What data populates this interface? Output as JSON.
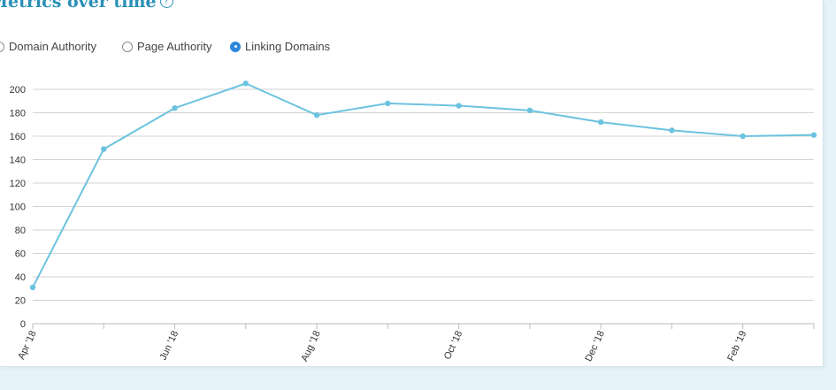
{
  "header": {
    "title": "Metrics over time",
    "help_icon": "question-circle-icon"
  },
  "metric_options": [
    {
      "label": "Domain Authority",
      "selected": false
    },
    {
      "label": "Page Authority",
      "selected": false
    },
    {
      "label": "Linking Domains",
      "selected": true
    }
  ],
  "colors": {
    "line": "#6cc3df",
    "accent": "#2a90b7",
    "grid": "#d3d3d3",
    "radio_selected": "#2e86de"
  },
  "chart_data": {
    "type": "line",
    "title": "",
    "xlabel": "",
    "ylabel": "",
    "ylim": [
      0,
      200
    ],
    "yticks": [
      0,
      20,
      40,
      60,
      80,
      100,
      120,
      140,
      160,
      180,
      200
    ],
    "x": [
      "Apr '18",
      "May '18",
      "Jun '18",
      "Jul '18",
      "Aug '18",
      "Sep '18",
      "Oct '18",
      "Nov '18",
      "Dec '18",
      "Jan '19",
      "Feb '19",
      "Mar '19"
    ],
    "x_tick_labels": [
      "Apr '18",
      "",
      "Jun '18",
      "",
      "Aug '18",
      "",
      "Oct '18",
      "",
      "Dec '18",
      "",
      "Feb '19",
      ""
    ],
    "series": [
      {
        "values": [
          31,
          149,
          184,
          205,
          178,
          188,
          186,
          182,
          172,
          165,
          160,
          161
        ]
      }
    ],
    "grid": true,
    "legend": "none"
  }
}
